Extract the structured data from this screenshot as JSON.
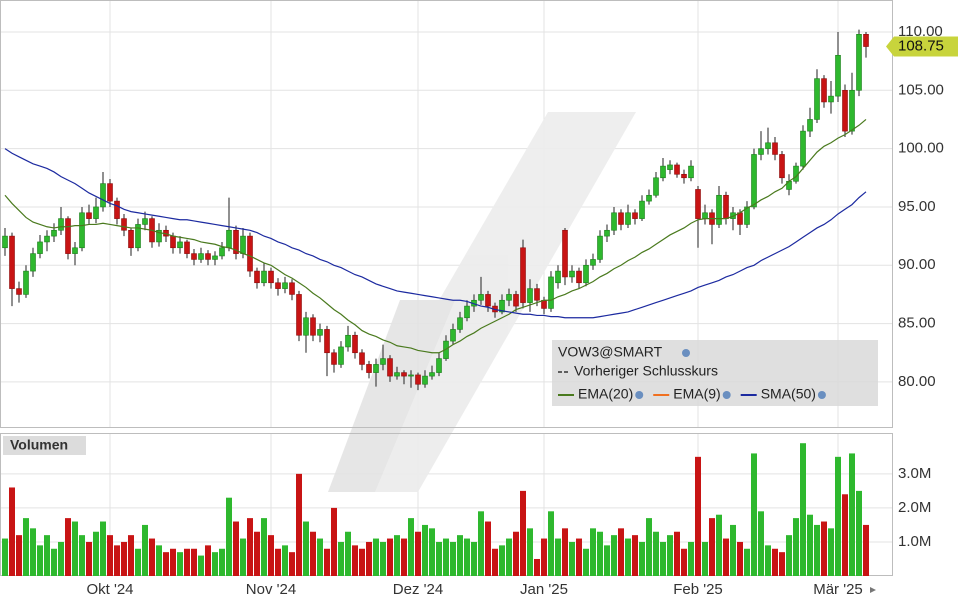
{
  "chart_data": {
    "type": "candlestick",
    "categories": [
      null,
      null,
      null,
      null,
      null,
      null,
      null,
      null,
      null,
      null,
      null,
      null,
      null,
      null,
      null,
      "Okt '24",
      null,
      null,
      null,
      null,
      null,
      null,
      null,
      null,
      null,
      null,
      null,
      null,
      null,
      null,
      null,
      null,
      null,
      null,
      null,
      null,
      null,
      null,
      "Nov '24",
      null,
      null,
      null,
      null,
      null,
      null,
      null,
      null,
      null,
      null,
      null,
      null,
      null,
      null,
      null,
      null,
      null,
      null,
      null,
      null,
      "Dez '24",
      null,
      null,
      null,
      null,
      null,
      null,
      null,
      null,
      null,
      null,
      null,
      null,
      null,
      null,
      null,
      null,
      null,
      "Jan '25",
      null,
      null,
      null,
      null,
      null,
      null,
      null,
      null,
      null,
      null,
      null,
      null,
      null,
      null,
      null,
      null,
      null,
      null,
      null,
      null,
      null,
      "Feb '25",
      null,
      null,
      null,
      null,
      null,
      null,
      null,
      null,
      null,
      null,
      null,
      null,
      null,
      null,
      null,
      null,
      null,
      null,
      null,
      "Mär '25",
      null,
      null,
      null,
      null
    ],
    "ylim": [
      76.05,
      112.74
    ],
    "yticks": [
      {
        "value": 80,
        "label": "80.00"
      },
      {
        "value": 85,
        "label": "85.00"
      },
      {
        "value": 90,
        "label": "90.00"
      },
      {
        "value": 95,
        "label": "95.00"
      },
      {
        "value": 100,
        "label": "100.00"
      },
      {
        "value": 105,
        "label": "105.00"
      },
      {
        "value": 110,
        "label": "110.00"
      }
    ],
    "grid": true,
    "up_color": "#2eb82e",
    "down_color": "#c81414",
    "last_price_color": "#c8d43c",
    "ohlc": [
      [
        91.5,
        93.2,
        90.8,
        92.5
      ],
      [
        92.5,
        92.8,
        86.5,
        88.0
      ],
      [
        88.0,
        88.6,
        86.8,
        87.5
      ],
      [
        87.5,
        90.0,
        87.2,
        89.5
      ],
      [
        89.5,
        91.5,
        89.0,
        91.0
      ],
      [
        91.0,
        92.6,
        90.6,
        92.0
      ],
      [
        92.0,
        93.0,
        91.2,
        92.5
      ],
      [
        92.5,
        93.6,
        92.0,
        93.0
      ],
      [
        93.0,
        95.0,
        92.6,
        94.0
      ],
      [
        94.0,
        94.2,
        90.5,
        91.0
      ],
      [
        91.0,
        92.0,
        90.0,
        91.5
      ],
      [
        91.5,
        95.0,
        91.2,
        94.5
      ],
      [
        94.5,
        95.2,
        93.5,
        94.0
      ],
      [
        94.0,
        95.8,
        93.6,
        95.0
      ],
      [
        95.0,
        98.0,
        94.6,
        97.0
      ],
      [
        97.0,
        97.4,
        95.0,
        95.5
      ],
      [
        95.5,
        95.8,
        93.5,
        94.0
      ],
      [
        94.0,
        94.4,
        92.5,
        93.0
      ],
      [
        93.0,
        93.2,
        90.8,
        91.5
      ],
      [
        91.5,
        94.0,
        91.2,
        93.5
      ],
      [
        93.5,
        94.6,
        93.0,
        94.0
      ],
      [
        94.0,
        94.2,
        91.5,
        92.0
      ],
      [
        92.0,
        93.6,
        91.6,
        93.0
      ],
      [
        93.0,
        93.4,
        92.0,
        92.5
      ],
      [
        92.5,
        92.8,
        91.0,
        91.5
      ],
      [
        91.5,
        92.5,
        91.0,
        92.0
      ],
      [
        92.0,
        92.2,
        90.6,
        91.0
      ],
      [
        91.0,
        91.4,
        90.0,
        90.5
      ],
      [
        90.5,
        91.5,
        90.2,
        91.0
      ],
      [
        91.0,
        91.3,
        90.0,
        90.5
      ],
      [
        90.5,
        91.2,
        90.0,
        90.8
      ],
      [
        90.8,
        92.0,
        90.5,
        91.5
      ],
      [
        91.5,
        95.8,
        91.2,
        93.0
      ],
      [
        93.0,
        93.4,
        90.5,
        91.0
      ],
      [
        91.0,
        93.2,
        90.6,
        92.5
      ],
      [
        92.5,
        92.8,
        89.0,
        89.5
      ],
      [
        89.5,
        89.8,
        88.0,
        88.5
      ],
      [
        88.5,
        90.2,
        88.2,
        89.5
      ],
      [
        89.5,
        89.8,
        88.0,
        88.5
      ],
      [
        88.5,
        88.9,
        87.4,
        88.0
      ],
      [
        88.0,
        89.0,
        87.6,
        88.5
      ],
      [
        88.5,
        88.8,
        87.0,
        87.5
      ],
      [
        87.5,
        87.8,
        83.5,
        84.0
      ],
      [
        84.0,
        86.0,
        82.5,
        85.5
      ],
      [
        85.5,
        85.8,
        83.5,
        84.0
      ],
      [
        84.0,
        85.0,
        83.4,
        84.5
      ],
      [
        84.5,
        84.8,
        80.5,
        82.5
      ],
      [
        82.5,
        82.8,
        80.8,
        81.5
      ],
      [
        81.5,
        83.5,
        81.2,
        83.0
      ],
      [
        83.0,
        84.8,
        82.6,
        84.0
      ],
      [
        84.0,
        84.3,
        82.0,
        82.5
      ],
      [
        82.5,
        82.8,
        81.0,
        81.5
      ],
      [
        81.5,
        81.8,
        80.3,
        80.8
      ],
      [
        80.8,
        82.0,
        79.6,
        81.5
      ],
      [
        81.5,
        83.2,
        81.0,
        82.0
      ],
      [
        82.0,
        82.3,
        80.0,
        80.5
      ],
      [
        80.5,
        81.3,
        80.2,
        80.8
      ],
      [
        80.8,
        81.0,
        79.8,
        80.5
      ],
      [
        80.5,
        81.0,
        79.5,
        80.6
      ],
      [
        80.6,
        80.8,
        79.3,
        79.8
      ],
      [
        79.8,
        81.0,
        79.5,
        80.5
      ],
      [
        80.5,
        81.4,
        80.2,
        80.8
      ],
      [
        80.8,
        82.5,
        80.5,
        82.0
      ],
      [
        82.0,
        84.0,
        81.8,
        83.5
      ],
      [
        83.5,
        85.0,
        83.2,
        84.5
      ],
      [
        84.5,
        86.0,
        84.2,
        85.5
      ],
      [
        85.5,
        87.0,
        85.2,
        86.5
      ],
      [
        86.5,
        87.5,
        86.0,
        87.0
      ],
      [
        87.0,
        89.0,
        86.6,
        87.5
      ],
      [
        87.5,
        87.8,
        86.0,
        86.5
      ],
      [
        86.5,
        86.8,
        85.5,
        86.0
      ],
      [
        86.0,
        87.5,
        85.8,
        87.0
      ],
      [
        87.0,
        88.0,
        86.5,
        87.5
      ],
      [
        87.5,
        87.8,
        86.0,
        86.5
      ],
      [
        91.5,
        92.2,
        86.3,
        86.8
      ],
      [
        86.8,
        88.8,
        86.0,
        88.0
      ],
      [
        88.0,
        88.4,
        86.5,
        87.0
      ],
      [
        87.0,
        87.3,
        85.8,
        86.3
      ],
      [
        86.3,
        89.5,
        86.0,
        89.0
      ],
      [
        88.5,
        90.0,
        88.0,
        89.5
      ],
      [
        93.0,
        93.2,
        88.3,
        89.0
      ],
      [
        89.0,
        90.0,
        88.5,
        89.5
      ],
      [
        89.5,
        89.8,
        88.0,
        88.5
      ],
      [
        88.5,
        90.5,
        88.2,
        90.0
      ],
      [
        90.0,
        91.0,
        89.6,
        90.5
      ],
      [
        90.5,
        93.0,
        90.2,
        92.5
      ],
      [
        92.5,
        93.5,
        92.0,
        93.0
      ],
      [
        93.0,
        95.0,
        92.6,
        94.5
      ],
      [
        94.5,
        94.8,
        93.0,
        93.5
      ],
      [
        93.5,
        95.2,
        93.2,
        94.5
      ],
      [
        94.5,
        94.8,
        93.5,
        94.0
      ],
      [
        94.0,
        96.0,
        93.8,
        95.5
      ],
      [
        95.5,
        96.5,
        95.2,
        96.0
      ],
      [
        96.0,
        98.0,
        95.8,
        97.5
      ],
      [
        97.5,
        99.2,
        97.2,
        98.5
      ],
      [
        98.2,
        99.0,
        97.8,
        98.6
      ],
      [
        98.6,
        98.8,
        97.5,
        97.8
      ],
      [
        97.8,
        98.2,
        97.0,
        97.5
      ],
      [
        97.5,
        99.0,
        97.2,
        98.5
      ],
      [
        96.5,
        96.8,
        91.5,
        94.0
      ],
      [
        94.0,
        95.2,
        93.5,
        94.5
      ],
      [
        94.5,
        94.8,
        91.8,
        93.5
      ],
      [
        93.5,
        96.8,
        93.2,
        96.0
      ],
      [
        96.0,
        96.3,
        93.5,
        94.0
      ],
      [
        94.0,
        95.0,
        93.0,
        94.5
      ],
      [
        94.5,
        94.8,
        92.6,
        93.5
      ],
      [
        93.5,
        95.5,
        93.2,
        95.0
      ],
      [
        95.0,
        100.0,
        94.8,
        99.5
      ],
      [
        99.5,
        101.5,
        99.0,
        100.0
      ],
      [
        100.0,
        101.8,
        99.5,
        100.5
      ],
      [
        100.5,
        101.0,
        99.0,
        99.5
      ],
      [
        99.5,
        99.8,
        97.0,
        97.5
      ],
      [
        96.5,
        97.8,
        96.0,
        97.2
      ],
      [
        97.2,
        98.8,
        97.0,
        98.5
      ],
      [
        98.5,
        102.0,
        98.2,
        101.5
      ],
      [
        101.5,
        103.5,
        101.0,
        102.5
      ],
      [
        102.5,
        106.8,
        102.2,
        106.0
      ],
      [
        106.0,
        106.3,
        103.5,
        104.0
      ],
      [
        104.0,
        105.8,
        103.0,
        104.5
      ],
      [
        104.5,
        110.0,
        104.0,
        108.0
      ],
      [
        105.0,
        105.5,
        101.0,
        101.5
      ],
      [
        101.5,
        106.5,
        101.2,
        105.0
      ],
      [
        105.0,
        110.2,
        104.5,
        109.8
      ],
      [
        109.8,
        110.0,
        107.8,
        108.75
      ]
    ],
    "lines": [
      {
        "name": "EMA(20)",
        "color": "#4a7a1e",
        "values": [
          96.0,
          95.3,
          94.7,
          94.1,
          93.7,
          93.5,
          93.3,
          93.2,
          93.3,
          93.3,
          93.4,
          93.4,
          93.5,
          93.5,
          93.6,
          93.5,
          93.4,
          93.3,
          93.2,
          93.2,
          93.1,
          93.0,
          92.8,
          92.7,
          92.5,
          92.4,
          92.3,
          92.2,
          92.0,
          91.9,
          91.8,
          91.6,
          91.5,
          91.3,
          91.0,
          90.8,
          90.5,
          90.2,
          90.0,
          89.6,
          89.2,
          88.9,
          88.5,
          88.1,
          87.6,
          87.2,
          86.7,
          86.2,
          85.8,
          85.3,
          84.9,
          84.4,
          84.1,
          83.9,
          83.6,
          83.4,
          83.1,
          83.0,
          82.9,
          82.7,
          82.6,
          82.5,
          82.5,
          82.8,
          83.2,
          83.5,
          83.9,
          84.2,
          84.6,
          84.9,
          85.2,
          85.5,
          85.8,
          86.2,
          86.4,
          86.6,
          86.8,
          87.0,
          87.0,
          87.3,
          87.5,
          87.8,
          88.0,
          88.3,
          88.6,
          89.0,
          89.3,
          89.7,
          90.0,
          90.4,
          90.7,
          91.1,
          91.4,
          91.8,
          92.2,
          92.6,
          92.9,
          93.2,
          93.6,
          93.9,
          94.0,
          94.0,
          94.0,
          94.0,
          94.2,
          94.5,
          94.9,
          95.2,
          95.6,
          95.9,
          96.3,
          96.6,
          97.2,
          97.6,
          98.3,
          99.0,
          99.7,
          100.2,
          100.5,
          100.9,
          101.2,
          101.6,
          102.0,
          102.5
        ]
      },
      {
        "name": "EMA(9)",
        "color": "#f07020",
        "visible": false
      },
      {
        "name": "SMA(50)",
        "color": "#1c2aa0",
        "values": [
          100.0,
          99.6,
          99.3,
          99.0,
          98.7,
          98.5,
          98.3,
          98.0,
          97.6,
          97.3,
          97.0,
          96.6,
          96.2,
          95.9,
          95.6,
          95.3,
          95.1,
          94.8,
          94.6,
          94.5,
          94.4,
          94.3,
          94.2,
          94.1,
          94.0,
          93.9,
          93.9,
          93.8,
          93.7,
          93.6,
          93.5,
          93.4,
          93.3,
          93.2,
          93.1,
          93.0,
          92.8,
          92.5,
          92.3,
          92.0,
          91.8,
          91.5,
          91.3,
          91.0,
          90.8,
          90.5,
          90.3,
          90.0,
          89.8,
          89.5,
          89.2,
          89.0,
          88.7,
          88.4,
          88.2,
          88.0,
          87.8,
          87.7,
          87.6,
          87.5,
          87.4,
          87.3,
          87.2,
          87.1,
          87.0,
          87.0,
          86.9,
          86.7,
          86.5,
          86.4,
          86.2,
          86.1,
          86.0,
          85.9,
          85.8,
          85.8,
          85.7,
          85.7,
          85.6,
          85.6,
          85.5,
          85.5,
          85.5,
          85.5,
          85.5,
          85.6,
          85.7,
          85.8,
          85.9,
          86.0,
          86.2,
          86.4,
          86.6,
          86.8,
          87.0,
          87.2,
          87.4,
          87.6,
          87.8,
          88.1,
          88.3,
          88.5,
          88.7,
          89.0,
          89.2,
          89.5,
          89.8,
          90.0,
          90.4,
          90.7,
          91.0,
          91.3,
          91.6,
          92.0,
          92.4,
          92.8,
          93.2,
          93.5,
          93.9,
          94.4,
          94.8,
          95.2,
          95.8,
          96.3
        ]
      }
    ],
    "legend": {
      "title": "VOW3@SMART",
      "entries": [
        "Vorheriger Schlusskurs"
      ]
    },
    "volume": {
      "title": "Volumen",
      "ylim": [
        0,
        4.2
      ],
      "yticks": [
        {
          "value": 1,
          "label": "1.0M"
        },
        {
          "value": 2,
          "label": "2.0M"
        },
        {
          "value": 3,
          "label": "3.0M"
        }
      ],
      "values": [
        1.1,
        2.6,
        1.2,
        1.7,
        1.4,
        0.9,
        1.2,
        0.8,
        1.0,
        1.7,
        1.6,
        1.2,
        1.0,
        1.3,
        1.6,
        1.2,
        0.9,
        1.0,
        1.2,
        0.8,
        1.5,
        1.1,
        0.9,
        0.7,
        0.8,
        0.7,
        0.8,
        0.8,
        0.6,
        0.9,
        0.7,
        0.8,
        2.3,
        1.6,
        1.1,
        1.7,
        1.3,
        1.7,
        1.2,
        0.8,
        0.9,
        0.7,
        3.0,
        1.6,
        1.3,
        1.1,
        0.8,
        2.0,
        1.0,
        1.3,
        0.9,
        0.8,
        1.0,
        1.1,
        1.0,
        1.1,
        1.2,
        1.1,
        1.7,
        1.3,
        1.5,
        1.4,
        1.0,
        1.1,
        1.0,
        1.2,
        1.1,
        1.0,
        1.9,
        1.6,
        0.8,
        0.9,
        1.1,
        1.3,
        2.5,
        1.4,
        0.5,
        1.1,
        1.9,
        1.1,
        1.4,
        1.0,
        1.1,
        0.8,
        1.4,
        1.3,
        0.9,
        1.2,
        1.4,
        1.1,
        1.2,
        1.0,
        1.7,
        1.3,
        1.0,
        1.2,
        1.3,
        0.8,
        1.0,
        3.5,
        1.0,
        1.7,
        1.8,
        1.1,
        1.5,
        1.0,
        0.8,
        3.6,
        1.9,
        0.9,
        0.8,
        0.7,
        1.2,
        1.7,
        3.9,
        1.8,
        1.5,
        1.6,
        1.4,
        3.5,
        2.4,
        3.6,
        2.5,
        1.5
      ]
    }
  }
}
